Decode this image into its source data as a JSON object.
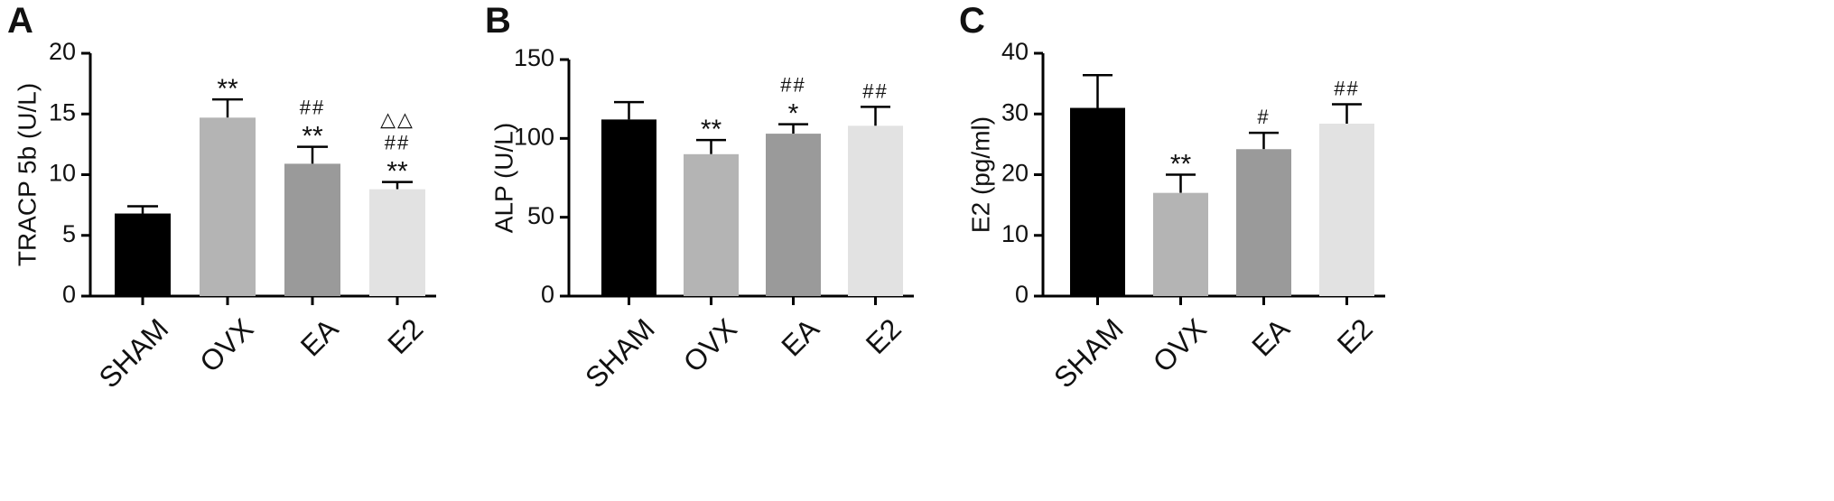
{
  "chart_data": [
    {
      "type": "bar",
      "panel": "A",
      "ylabel": "TRACP 5b (U/L)",
      "ylim": [
        0,
        20
      ],
      "yticks": [
        0,
        5,
        10,
        15,
        20
      ],
      "categories": [
        "SHAM",
        "OVX",
        "EA",
        "E2"
      ],
      "values": [
        6.8,
        14.7,
        10.9,
        8.8
      ],
      "errors": [
        0.6,
        1.5,
        1.4,
        0.6
      ],
      "colors": [
        "#000000",
        "#b4b4b4",
        "#9a9a9a",
        "#e2e2e2"
      ],
      "annotations": [
        [],
        [
          "**"
        ],
        [
          "##",
          "**"
        ],
        [
          "△△",
          "##",
          "**"
        ]
      ]
    },
    {
      "type": "bar",
      "panel": "B",
      "ylabel": "ALP (U/L)",
      "ylim": [
        0,
        150
      ],
      "yticks": [
        0,
        50,
        100,
        150
      ],
      "categories": [
        "SHAM",
        "OVX",
        "EA",
        "E2"
      ],
      "values": [
        112,
        90,
        103,
        108
      ],
      "errors": [
        11,
        9,
        6,
        12
      ],
      "colors": [
        "#000000",
        "#b4b4b4",
        "#9a9a9a",
        "#e2e2e2"
      ],
      "annotations": [
        [],
        [
          "**"
        ],
        [
          "##",
          "*"
        ],
        [
          "##"
        ]
      ]
    },
    {
      "type": "bar",
      "panel": "C",
      "ylabel": "E2 (pg/ml)",
      "ylim": [
        0,
        40
      ],
      "yticks": [
        0,
        10,
        20,
        30,
        40
      ],
      "categories": [
        "SHAM",
        "OVX",
        "EA",
        "E2"
      ],
      "values": [
        31,
        17,
        24.2,
        28.4
      ],
      "errors": [
        5.4,
        3,
        2.7,
        3.2
      ],
      "colors": [
        "#000000",
        "#b4b4b4",
        "#9a9a9a",
        "#e2e2e2"
      ],
      "annotations": [
        [],
        [
          "**"
        ],
        [
          "#"
        ],
        [
          "##"
        ]
      ]
    }
  ]
}
